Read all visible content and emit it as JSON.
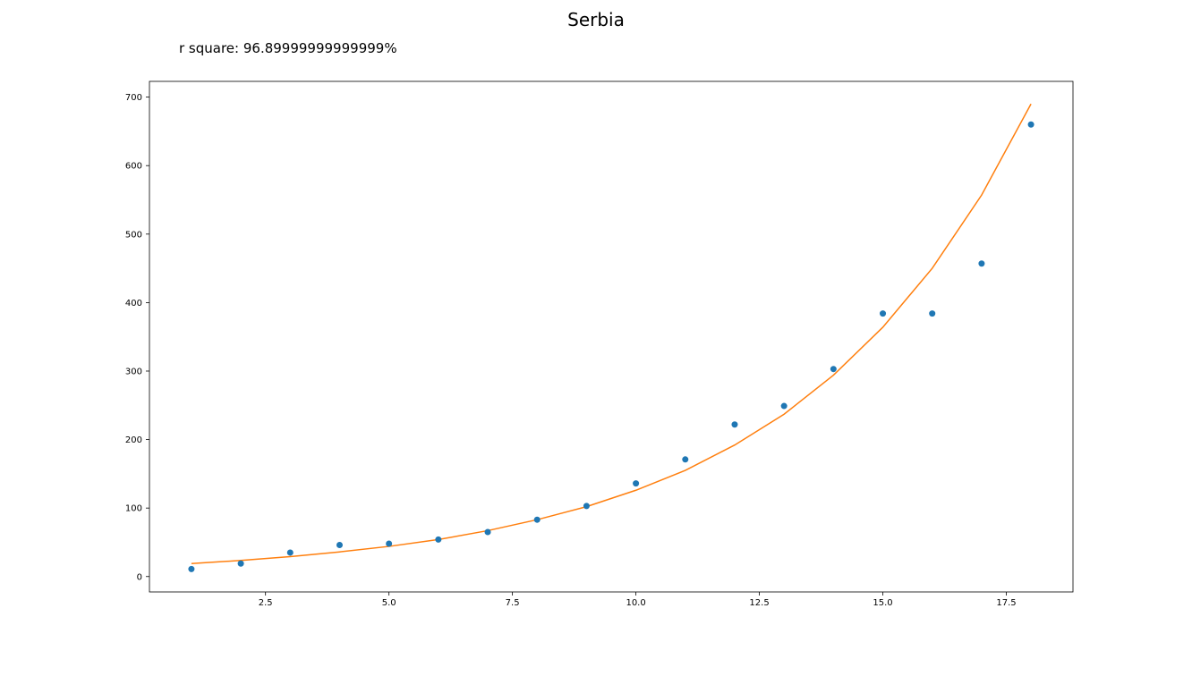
{
  "chart_data": {
    "type": "scatter",
    "title": "Serbia",
    "annotation": "r square: 96.89999999999999%",
    "xlabel": "",
    "ylabel": "",
    "xlim": [
      0.15,
      18.85
    ],
    "ylim": [
      -22.5,
      723
    ],
    "x_ticks": [
      2.5,
      5.0,
      7.5,
      10.0,
      12.5,
      15.0,
      17.5
    ],
    "x_tick_labels": [
      "2.5",
      "5.0",
      "7.5",
      "10.0",
      "12.5",
      "15.0",
      "17.5"
    ],
    "y_ticks": [
      0,
      100,
      200,
      300,
      400,
      500,
      600,
      700
    ],
    "y_tick_labels": [
      "0",
      "100",
      "200",
      "300",
      "400",
      "500",
      "600",
      "700"
    ],
    "grid": false,
    "series": [
      {
        "kind": "scatter",
        "color": "#1f77b4",
        "x": [
          1,
          2,
          3,
          4,
          5,
          6,
          7,
          8,
          9,
          10,
          11,
          12,
          13,
          14,
          15,
          16,
          17,
          18
        ],
        "y": [
          11,
          19,
          35,
          46,
          48,
          54,
          65,
          83,
          103,
          136,
          171,
          222,
          249,
          303,
          384,
          384,
          457,
          660
        ]
      },
      {
        "kind": "line",
        "color": "#ff7f0e",
        "x": [
          1,
          2,
          3,
          4,
          5,
          6,
          7,
          8,
          9,
          10,
          11,
          12,
          13,
          14,
          15,
          16,
          17,
          18
        ],
        "y": [
          19,
          23.5,
          29,
          36,
          44,
          54,
          67,
          83,
          102,
          126,
          155,
          192,
          237,
          294,
          364,
          450,
          557,
          690
        ]
      }
    ]
  }
}
